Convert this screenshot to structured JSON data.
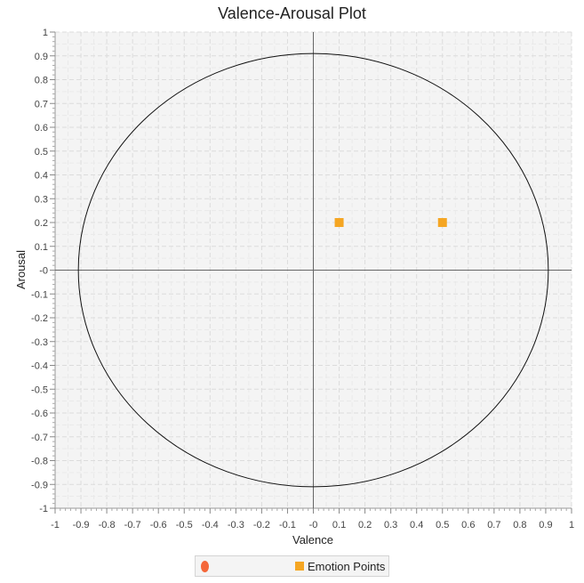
{
  "chart_data": {
    "type": "scatter",
    "title": "Valence-Arousal Plot",
    "xlabel": "Valence",
    "ylabel": "Arousal",
    "xlim": [
      -1,
      1
    ],
    "ylim": [
      -1,
      1
    ],
    "x_ticks": [
      "-1",
      "-0.9",
      "-0.8",
      "-0.7",
      "-0.6",
      "-0.5",
      "-0.4",
      "-0.3",
      "-0.2",
      "-0.1",
      "-0",
      "0.1",
      "0.2",
      "0.3",
      "0.4",
      "0.5",
      "0.6",
      "0.7",
      "0.8",
      "0.9",
      "1"
    ],
    "y_ticks": [
      "1",
      "0.9",
      "0.8",
      "0.7",
      "0.6",
      "0.5",
      "0.4",
      "0.3",
      "0.2",
      "0.1",
      "-0",
      "-0.1",
      "-0.2",
      "-0.3",
      "-0.4",
      "-0.5",
      "-0.6",
      "-0.7",
      "-0.8",
      "-0.9",
      "-1"
    ],
    "grid": true,
    "legend_position": "bottom-center",
    "series": [
      {
        "name": "",
        "kind": "circle",
        "center": [
          0,
          0
        ],
        "radius": 0.91,
        "color": "#f4673a"
      },
      {
        "name": "Emotion Points",
        "kind": "points",
        "color": "#f5a623",
        "points": [
          {
            "x": 0.1,
            "y": 0.2
          },
          {
            "x": 0.5,
            "y": 0.2
          }
        ]
      }
    ]
  }
}
